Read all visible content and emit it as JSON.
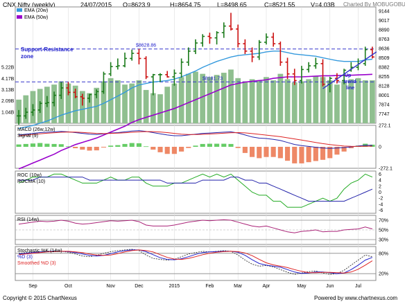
{
  "header": {
    "title": "CNX Nifty (weekly)",
    "date": "24/07/2015",
    "open": "O=8623.9",
    "high": "H=8654.75",
    "low": "L=8498.65",
    "close": "C=8521.55",
    "volume": "V=4.03B",
    "credit": "Charted By MOBUGOBU"
  },
  "footer": {
    "copyright": "Copyright © 2015 ChartNexus",
    "powered": "Powered by www.chartnexus.com"
  },
  "colors": {
    "up_candle": "#1a7a1a",
    "down_candle": "#cc1111",
    "ema20": "#3399dd",
    "ema50": "#9900cc",
    "volume": "#8fbf8f",
    "support_line": "#3333cc",
    "annotation_text": "#2222cc",
    "macd": "#2222aa",
    "signal": "#dd2222",
    "roc": "#22aa22",
    "rocma": "#2222aa",
    "rsi": "#aa2277"
  },
  "chart_data": [
    {
      "type": "candlestick",
      "panel": "price",
      "x": [
        "Aug-1",
        "Aug-2",
        "Aug-3",
        "Aug-4",
        "Sep-1",
        "Sep-2",
        "Sep-3",
        "Sep-4",
        "Oct-1",
        "Oct-2",
        "Oct-3",
        "Oct-4",
        "Oct-5",
        "Nov-1",
        "Nov-2",
        "Nov-3",
        "Nov-4",
        "Dec-1",
        "Dec-2",
        "Dec-3",
        "Dec-4",
        "Jan-1",
        "Jan-2",
        "Jan-3",
        "Jan-4",
        "Jan-5",
        "Feb-1",
        "Feb-2",
        "Feb-3",
        "Feb-4",
        "Mar-1",
        "Mar-2",
        "Mar-3",
        "Mar-4",
        "Apr-1",
        "Apr-2",
        "Apr-3",
        "Apr-4",
        "May-1",
        "May-2",
        "May-3",
        "May-4",
        "May-5",
        "Jun-1",
        "Jun-2",
        "Jun-3",
        "Jun-4",
        "Jul-1",
        "Jul-2",
        "Jul-3",
        "Jul-4"
      ],
      "open": [
        7720,
        7720,
        7770,
        7800,
        7890,
        7900,
        8000,
        8100,
        8040,
        7980,
        7960,
        8010,
        8050,
        8290,
        8390,
        8400,
        8500,
        8570,
        8500,
        8250,
        8280,
        8280,
        8250,
        8300,
        8450,
        8600,
        8710,
        8800,
        8780,
        8850,
        8940,
        8900,
        8700,
        8600,
        8520,
        8720,
        8790,
        8700,
        8450,
        8290,
        8200,
        8350,
        8400,
        8430,
        8150,
        8230,
        8200,
        8340,
        8380,
        8430,
        8620
      ],
      "high": [
        7800,
        7830,
        7880,
        7920,
        7990,
        8050,
        8180,
        8180,
        8090,
        8020,
        8020,
        8080,
        8320,
        8450,
        8500,
        8580,
        8620,
        8630,
        8530,
        8290,
        8300,
        8330,
        8350,
        8500,
        8650,
        8760,
        8830,
        8850,
        8870,
        8990,
        9120,
        8960,
        8760,
        8650,
        8750,
        8840,
        8850,
        8730,
        8510,
        8360,
        8400,
        8450,
        8510,
        8490,
        8250,
        8300,
        8360,
        8450,
        8500,
        8660,
        8660
      ],
      "low": [
        7600,
        7680,
        7720,
        7760,
        7840,
        7850,
        7950,
        8000,
        7960,
        7860,
        7900,
        7960,
        8020,
        8260,
        8350,
        8380,
        8470,
        8420,
        8220,
        8000,
        8180,
        8240,
        8130,
        8240,
        8400,
        8560,
        8660,
        8700,
        8690,
        8780,
        8880,
        8650,
        8560,
        8450,
        8480,
        8690,
        8660,
        8400,
        8220,
        8140,
        8160,
        8310,
        8360,
        8120,
        8040,
        8160,
        8150,
        8320,
        8340,
        8400,
        8500
      ],
      "close": [
        7720,
        7770,
        7800,
        7890,
        7900,
        8000,
        8100,
        8040,
        7980,
        7960,
        8010,
        8050,
        8290,
        8390,
        8400,
        8500,
        8570,
        8500,
        8250,
        8280,
        8280,
        8250,
        8300,
        8450,
        8600,
        8710,
        8800,
        8780,
        8850,
        8940,
        8900,
        8700,
        8600,
        8520,
        8720,
        8790,
        8700,
        8450,
        8290,
        8200,
        8350,
        8400,
        8430,
        8150,
        8230,
        8200,
        8340,
        8380,
        8430,
        8620,
        8520
      ],
      "ema20": [
        7550,
        7570,
        7590,
        7620,
        7650,
        7690,
        7730,
        7760,
        7790,
        7810,
        7830,
        7850,
        7890,
        7940,
        7990,
        8040,
        8100,
        8140,
        8160,
        8180,
        8190,
        8200,
        8220,
        8250,
        8290,
        8330,
        8380,
        8420,
        8460,
        8490,
        8520,
        8540,
        8550,
        8560,
        8570,
        8590,
        8600,
        8600,
        8580,
        8560,
        8550,
        8540,
        8530,
        8510,
        8490,
        8470,
        8460,
        8460,
        8460,
        8480,
        8490
      ],
      "ema50": [
        7000,
        7040,
        7080,
        7120,
        7160,
        7200,
        7250,
        7290,
        7330,
        7360,
        7390,
        7420,
        7460,
        7500,
        7540,
        7580,
        7630,
        7670,
        7700,
        7730,
        7760,
        7790,
        7820,
        7860,
        7900,
        7940,
        7980,
        8020,
        8060,
        8100,
        8140,
        8160,
        8180,
        8190,
        8200,
        8210,
        8230,
        8240,
        8250,
        8250,
        8250,
        8255,
        8260,
        8265,
        8265,
        8268,
        8270,
        8273,
        8276,
        8280,
        8285
      ],
      "volume": [
        2.2,
        2.6,
        3.0,
        3.2,
        3.4,
        3.6,
        3.9,
        3.7,
        3.5,
        3.0,
        2.8,
        3.3,
        3.9,
        4.2,
        4.0,
        3.6,
        3.7,
        4.0,
        3.1,
        2.8,
        2.7,
        3.4,
        3.7,
        4.3,
        4.6,
        4.8,
        4.6,
        4.3,
        4.5,
        4.7,
        5.0,
        4.2,
        3.9,
        4.1,
        4.0,
        4.3,
        4.0,
        4.6,
        4.1,
        3.8,
        3.9,
        4.1,
        4.4,
        4.3,
        4.0,
        3.6,
        3.9,
        4.1,
        4.2,
        4.0,
        4.0
      ],
      "price_ticks": [
        "9144",
        "9017",
        "8890",
        "8763",
        "8636",
        "8509",
        "8382",
        "8255",
        "8128",
        "8001",
        "7874",
        "7747"
      ],
      "volume_ticks": [
        "5.22B",
        "4.17B",
        "3.13B",
        "2.09B",
        "1.04B"
      ],
      "ylim": [
        7620,
        9200
      ],
      "support_levels": [
        {
          "price": 8628.86,
          "label": "$8628.86"
        },
        {
          "price": 8181.73,
          "label": "$8181.73"
        }
      ],
      "annotations": [
        "Support-Resistance zone",
        "Up trend line"
      ]
    },
    {
      "type": "line",
      "panel": "macd",
      "series": [
        {
          "name": "MACD (26w,12w)",
          "values": [
            150,
            160,
            170,
            180,
            185,
            190,
            195,
            190,
            180,
            170,
            160,
            155,
            165,
            175,
            180,
            190,
            200,
            205,
            195,
            180,
            165,
            150,
            140,
            140,
            150,
            160,
            170,
            175,
            180,
            185,
            190,
            175,
            150,
            125,
            110,
            105,
            95,
            80,
            55,
            30,
            15,
            5,
            -5,
            -15,
            -20,
            -15,
            -10,
            0,
            10,
            20,
            18
          ]
        },
        {
          "name": "Signal (9)",
          "values": [
            140,
            148,
            156,
            164,
            172,
            178,
            184,
            188,
            186,
            182,
            176,
            170,
            168,
            170,
            173,
            178,
            184,
            190,
            193,
            192,
            188,
            180,
            170,
            160,
            155,
            155,
            158,
            162,
            167,
            172,
            178,
            180,
            176,
            168,
            158,
            148,
            138,
            128,
            114,
            100,
            85,
            70,
            55,
            40,
            28,
            18,
            10,
            6,
            5,
            7,
            9
          ]
        }
      ],
      "ylim": [
        -272.1,
        272.1
      ],
      "ticks": [
        "272.1",
        "0",
        "-272.1"
      ]
    },
    {
      "type": "line",
      "panel": "roc",
      "series": [
        {
          "name": "ROC (10w)",
          "values": [
            3,
            4,
            5,
            5,
            5,
            6,
            6,
            5,
            4,
            3,
            3,
            3,
            4,
            5,
            4,
            4,
            5,
            5,
            3,
            2,
            2,
            2,
            3,
            3,
            4,
            5,
            6,
            5,
            6,
            5,
            6,
            4,
            2,
            0,
            -1,
            -1,
            -3,
            -3,
            -5,
            -5,
            -5,
            -4,
            -3,
            -2,
            -3,
            -2,
            1,
            3,
            4,
            6,
            5
          ]
        },
        {
          "name": "ROCMA (10)",
          "values": [
            4,
            4,
            4,
            5,
            5,
            5,
            5,
            5,
            5,
            5,
            4,
            4,
            4,
            4,
            4,
            4,
            4,
            4,
            4,
            4,
            4,
            3,
            3,
            3,
            3,
            3,
            4,
            4,
            4,
            4,
            5,
            5,
            4,
            4,
            3,
            3,
            2,
            1,
            0,
            -1,
            -2,
            -3,
            -3,
            -3,
            -3,
            -3,
            -3,
            -2,
            -1,
            0,
            1
          ]
        }
      ],
      "ticks": [
        "6",
        "4",
        "2",
        "0",
        "-2",
        "-4",
        "-6"
      ]
    },
    {
      "type": "line",
      "panel": "rsi",
      "series": [
        {
          "name": "RSI (14w)",
          "values": [
            62,
            64,
            66,
            68,
            67,
            68,
            70,
            68,
            64,
            62,
            63,
            65,
            67,
            69,
            68,
            69,
            70,
            67,
            60,
            58,
            58,
            58,
            60,
            63,
            66,
            68,
            70,
            69,
            70,
            71,
            70,
            66,
            62,
            58,
            56,
            58,
            54,
            50,
            46,
            44,
            47,
            48,
            50,
            46,
            47,
            47,
            50,
            51,
            52,
            56,
            52
          ]
        }
      ],
      "ticks": [
        "70%",
        "50%",
        "30%"
      ]
    },
    {
      "type": "line",
      "panel": "stochastic",
      "series": [
        {
          "name": "Stochastic %K (14w)",
          "values": [
            80,
            82,
            84,
            85,
            86,
            87,
            86,
            83,
            78,
            72,
            70,
            74,
            80,
            85,
            88,
            90,
            92,
            88,
            75,
            65,
            62,
            60,
            62,
            70,
            78,
            82,
            86,
            84,
            86,
            88,
            86,
            75,
            60,
            48,
            42,
            44,
            40,
            32,
            24,
            18,
            22,
            26,
            28,
            22,
            18,
            20,
            30,
            45,
            60,
            75,
            70
          ]
        },
        {
          "name": "%D (3)",
          "values": [
            78,
            80,
            82,
            84,
            85,
            86,
            86,
            85,
            82,
            78,
            74,
            72,
            74,
            79,
            84,
            88,
            90,
            90,
            85,
            76,
            67,
            62,
            61,
            64,
            70,
            77,
            82,
            84,
            85,
            86,
            86,
            83,
            74,
            61,
            50,
            45,
            42,
            39,
            32,
            25,
            21,
            22,
            25,
            25,
            23,
            20,
            22,
            32,
            45,
            60,
            68
          ]
        },
        {
          "name": "Smoothed %D (3)",
          "values": [
            76,
            78,
            80,
            82,
            84,
            85,
            86,
            86,
            84,
            82,
            78,
            75,
            74,
            75,
            79,
            84,
            88,
            90,
            88,
            84,
            76,
            68,
            63,
            62,
            65,
            70,
            76,
            80,
            83,
            85,
            86,
            85,
            81,
            73,
            62,
            52,
            46,
            42,
            38,
            32,
            27,
            23,
            23,
            24,
            24,
            23,
            22,
            25,
            33,
            45,
            58
          ]
        }
      ],
      "ticks": [
        "80%",
        "20%"
      ]
    }
  ],
  "x_axis": {
    "labels": [
      "Sep",
      "Oct",
      "Nov",
      "Dec",
      "2015",
      "Feb",
      "Mar",
      "Apr",
      "May",
      "Jun",
      "Jul"
    ]
  }
}
